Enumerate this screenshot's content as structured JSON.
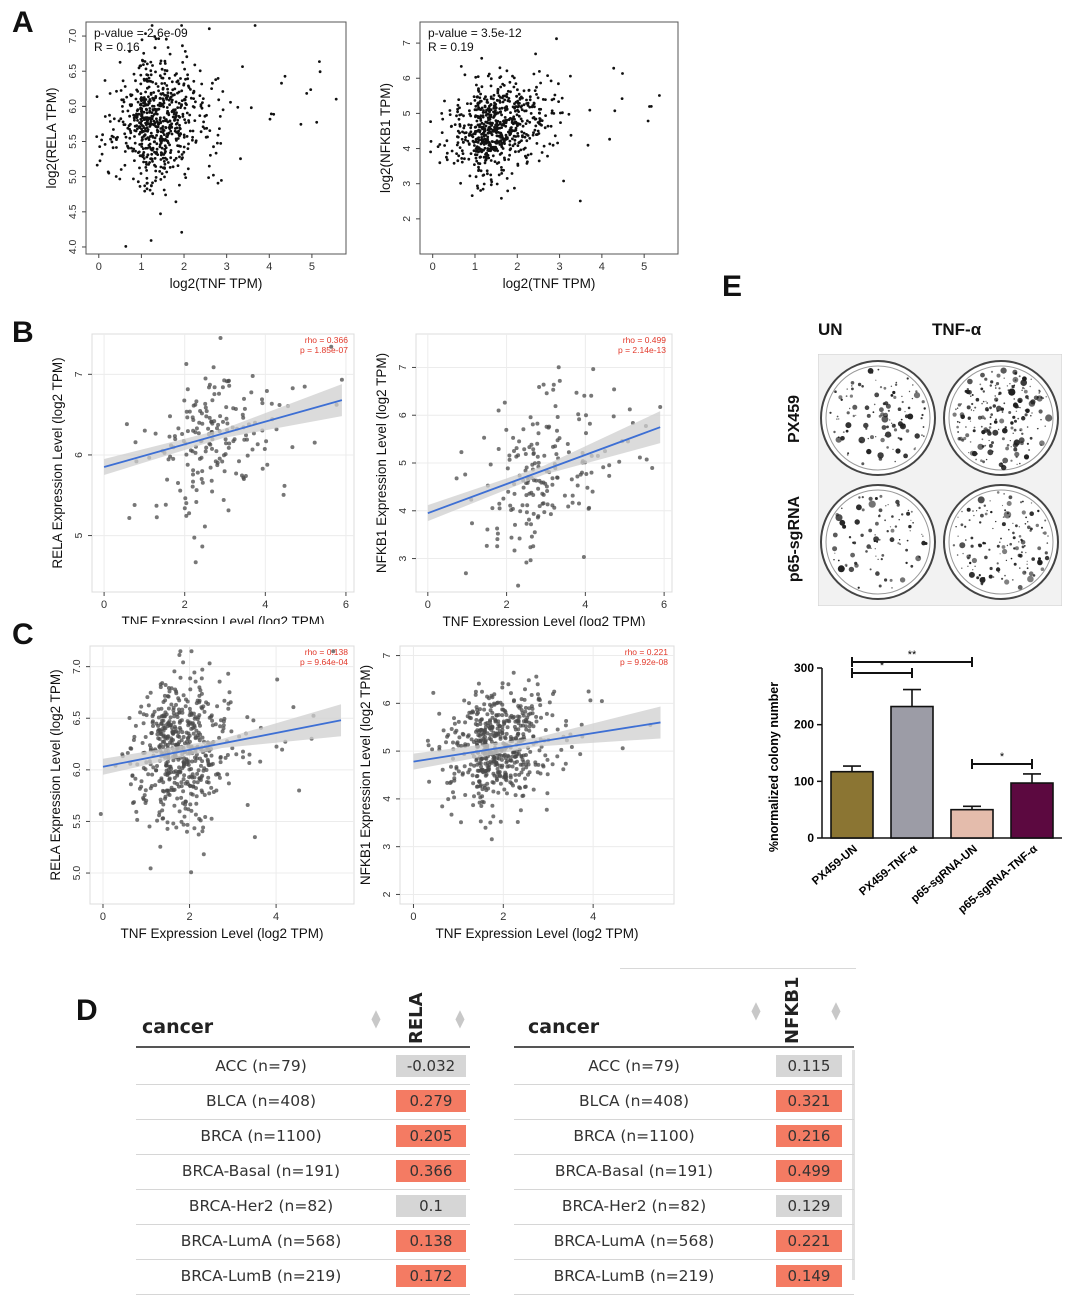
{
  "panel_labels": {
    "a": "A",
    "b": "B",
    "c": "C",
    "d": "D",
    "e": "E"
  },
  "chart_data": [
    {
      "id": "A1",
      "type": "scatter",
      "stats": [
        "p-value = 2.6e-09",
        "R = 0.16"
      ],
      "xlabel": "log2(TNF TPM)",
      "ylabel": "log2(RELA TPM)",
      "xlim": [
        -0.3,
        5.8
      ],
      "ylim": [
        3.9,
        7.2
      ],
      "xticks": [
        0,
        1,
        2,
        3,
        4,
        5
      ],
      "yticks": [
        4.0,
        4.5,
        5.0,
        5.5,
        6.0,
        6.5,
        7.0
      ],
      "ytick_labels": [
        "4.0",
        "4.5",
        "5.0",
        "5.5",
        "6.0",
        "6.5",
        "7.0"
      ],
      "sim": {
        "n": 700,
        "xmean": 0.95,
        "xsd": 0.75,
        "ymean": 5.75,
        "ysd": 0.45,
        "slope": 0.09,
        "xmax": 5.6,
        "seed": 11
      }
    },
    {
      "id": "A2",
      "type": "scatter",
      "stats": [
        "p-value = 3.5e-12",
        "R = 0.19"
      ],
      "xlabel": "log2(TNF TPM)",
      "ylabel": "log2(NFKB1 TPM)",
      "xlim": [
        -0.3,
        5.8
      ],
      "ylim": [
        1.0,
        7.6
      ],
      "xticks": [
        0,
        1,
        2,
        3,
        4,
        5
      ],
      "yticks": [
        2,
        3,
        4,
        5,
        6,
        7
      ],
      "ytick_labels": [
        "2",
        "3",
        "4",
        "5",
        "6",
        "7"
      ],
      "sim": {
        "n": 700,
        "xmean": 1.0,
        "xsd": 0.8,
        "ymean": 4.5,
        "ysd": 0.7,
        "slope": 0.2,
        "xmax": 5.6,
        "seed": 23
      }
    },
    {
      "id": "B1",
      "type": "scatter",
      "rho": "rho = 0.366",
      "p": "p = 1.85e-07",
      "xlabel": "TNF Expression Level (log2 TPM)",
      "ylabel": "RELA Expression Level (log2 TPM)",
      "xlim": [
        -0.3,
        6.2
      ],
      "ylim": [
        4.3,
        7.5
      ],
      "xticks": [
        0,
        2,
        4,
        6
      ],
      "yticks": [
        5,
        6,
        7
      ],
      "ytick_labels": [
        "5",
        "6",
        "7"
      ],
      "fit": {
        "x0": 0,
        "y0": 5.85,
        "x1": 5.9,
        "y1": 6.68
      },
      "sim": {
        "n": 190,
        "xmean": 2.0,
        "xsd": 1.1,
        "ymean": 6.1,
        "ysd": 0.5,
        "slope": 0.14,
        "xmax": 5.9,
        "seed": 37
      }
    },
    {
      "id": "B2",
      "type": "scatter",
      "rho": "rho = 0.499",
      "p": "p = 2.14e-13",
      "xlabel": "TNF Expression Level (log2 TPM)",
      "ylabel": "NFKB1 Expression Level (log2 TPM)",
      "xlim": [
        -0.3,
        6.2
      ],
      "ylim": [
        2.3,
        7.7
      ],
      "xticks": [
        0,
        2,
        4,
        6
      ],
      "yticks": [
        3,
        4,
        5,
        6,
        7
      ],
      "ytick_labels": [
        "3",
        "4",
        "5",
        "6",
        "7"
      ],
      "fit": {
        "x0": 0,
        "y0": 3.95,
        "x1": 5.9,
        "y1": 5.75
      },
      "sim": {
        "n": 190,
        "xmean": 2.2,
        "xsd": 1.2,
        "ymean": 4.6,
        "ysd": 0.8,
        "slope": 0.3,
        "xmax": 5.9,
        "seed": 41
      }
    },
    {
      "id": "C1",
      "type": "scatter",
      "rho": "rho = 0.138",
      "p": "p = 9.64e-04",
      "xlabel": "TNF Expression Level (log2 TPM)",
      "ylabel": "RELA Expression Level (log2 TPM)",
      "xlim": [
        -0.3,
        5.8
      ],
      "ylim": [
        4.7,
        7.2
      ],
      "xticks": [
        0,
        2,
        4
      ],
      "yticks": [
        5.0,
        5.5,
        6.0,
        6.5,
        7.0
      ],
      "ytick_labels": [
        "5.0",
        "5.5",
        "6.0",
        "6.5",
        "7.0"
      ],
      "fit": {
        "x0": 0,
        "y0": 6.03,
        "x1": 5.5,
        "y1": 6.48
      },
      "sim": {
        "n": 560,
        "xmean": 1.3,
        "xsd": 0.75,
        "ymean": 6.15,
        "ysd": 0.35,
        "slope": 0.08,
        "xmax": 5.5,
        "seed": 53
      }
    },
    {
      "id": "C2",
      "type": "scatter",
      "rho": "rho = 0.221",
      "p": "p = 9.92e-08",
      "xlabel": "TNF Expression Level (log2 TPM)",
      "ylabel": "NFKB1 Expression Level (log2 TPM)",
      "xlim": [
        -0.3,
        5.8
      ],
      "ylim": [
        1.8,
        7.2
      ],
      "xticks": [
        0,
        2,
        4
      ],
      "yticks": [
        2,
        3,
        4,
        5,
        6,
        7
      ],
      "ytick_labels": [
        "2",
        "3",
        "4",
        "5",
        "6",
        "7"
      ],
      "fit": {
        "x0": 0,
        "y0": 4.78,
        "x1": 5.5,
        "y1": 5.6
      },
      "sim": {
        "n": 560,
        "xmean": 1.4,
        "xsd": 0.8,
        "ymean": 5.05,
        "ysd": 0.6,
        "slope": 0.15,
        "xmax": 5.5,
        "seed": 67
      }
    },
    {
      "id": "E_bar",
      "type": "bar",
      "ylabel": "%normalized colony number",
      "categories": [
        "PX459-UN",
        "PX459-TNF-α",
        "p65-sgRNA-UN",
        "p65-sgRNA-TNF-α"
      ],
      "values": [
        117,
        232,
        50,
        97
      ],
      "errors": [
        10,
        30,
        6,
        16
      ],
      "colors": [
        "#8b7533",
        "#9c9ca6",
        "#e4bcac",
        "#5c0940"
      ],
      "ylim": [
        0,
        300
      ],
      "yticks": [
        0,
        100,
        200,
        300
      ],
      "ytick_labels": [
        "0",
        "100",
        "200",
        "300"
      ],
      "significance": [
        {
          "from": 0,
          "to": 1,
          "label": "*"
        },
        {
          "from": 0,
          "to": 2,
          "label": "**"
        },
        {
          "from": 2,
          "to": 3,
          "label": "*"
        }
      ]
    },
    {
      "id": "D_rela",
      "type": "table",
      "columns": [
        "cancer",
        "RELA"
      ],
      "rows": [
        {
          "cancer": "ACC (n=79)",
          "value": "-0.032",
          "color": "#d6d6d6"
        },
        {
          "cancer": "BLCA (n=408)",
          "value": "0.279",
          "color": "#f47b63"
        },
        {
          "cancer": "BRCA (n=1100)",
          "value": "0.205",
          "color": "#f47b63"
        },
        {
          "cancer": "BRCA-Basal (n=191)",
          "value": "0.366",
          "color": "#f47b63"
        },
        {
          "cancer": "BRCA-Her2 (n=82)",
          "value": "0.1",
          "color": "#d6d6d6"
        },
        {
          "cancer": "BRCA-LumA (n=568)",
          "value": "0.138",
          "color": "#f47b63"
        },
        {
          "cancer": "BRCA-LumB (n=219)",
          "value": "0.172",
          "color": "#f47b63"
        }
      ]
    },
    {
      "id": "D_nfkb1",
      "type": "table",
      "columns": [
        "cancer",
        "NFKB1"
      ],
      "rows": [
        {
          "cancer": "ACC (n=79)",
          "value": "0.115",
          "color": "#d6d6d6"
        },
        {
          "cancer": "BLCA (n=408)",
          "value": "0.321",
          "color": "#f47b63"
        },
        {
          "cancer": "BRCA (n=1100)",
          "value": "0.216",
          "color": "#f47b63"
        },
        {
          "cancer": "BRCA-Basal (n=191)",
          "value": "0.499",
          "color": "#f47b63"
        },
        {
          "cancer": "BRCA-Her2 (n=82)",
          "value": "0.129",
          "color": "#d6d6d6"
        },
        {
          "cancer": "BRCA-LumA (n=568)",
          "value": "0.221",
          "color": "#f47b63"
        },
        {
          "cancer": "BRCA-LumB (n=219)",
          "value": "0.149",
          "color": "#f47b63"
        }
      ]
    }
  ],
  "colony": {
    "col_labels": [
      "UN",
      "TNF-α"
    ],
    "row_labels": [
      "PX459",
      "p65-sgRNA"
    ]
  },
  "colors": {
    "fit_line": "#3d6fd4",
    "ci_band": "#cfcfcf",
    "stat_red": "#e2392b",
    "positive": "#f47b63",
    "neutral": "#d6d6d6"
  }
}
